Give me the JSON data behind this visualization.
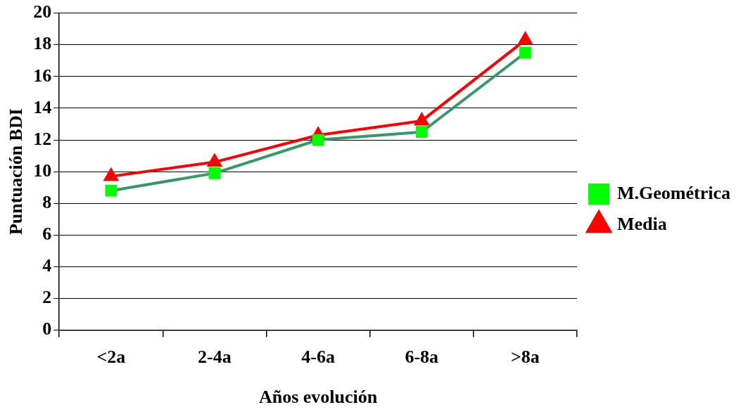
{
  "chart_data": {
    "type": "line",
    "xlabel": "Años evolución",
    "ylabel": "Puntuación BDI",
    "categories": [
      "<2a",
      "2-4a",
      "4-6a",
      "6-8a",
      ">8a"
    ],
    "series": [
      {
        "name": "Media",
        "color": "#ff0000",
        "marker": "triangle",
        "values": [
          9.7,
          10.6,
          12.3,
          13.2,
          18.3
        ]
      },
      {
        "name": "M.Geométrica",
        "color": "#339966",
        "colors": [
          "#00ff00",
          "#00ff00",
          "#00ff00",
          "#00ff00",
          "#00ff00"
        ],
        "marker": "square",
        "values": [
          8.8,
          9.9,
          12.0,
          12.5,
          17.5
        ]
      }
    ],
    "ylim": [
      0,
      20
    ],
    "yticks": [
      0,
      2,
      4,
      6,
      8,
      10,
      12,
      14,
      16,
      18,
      20
    ],
    "grid": "y",
    "legend": "right",
    "line_style": "solid"
  }
}
